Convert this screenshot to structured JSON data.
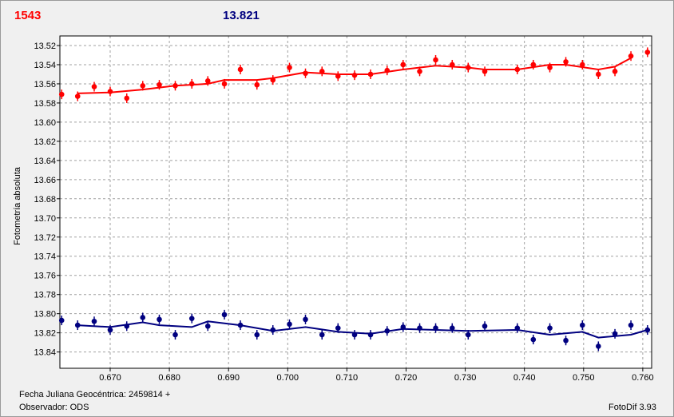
{
  "header": {
    "left_value": "1543",
    "right_value": "13.821",
    "left_color": "#ff0000",
    "right_color": "#000080"
  },
  "footer": {
    "date_label": "Fecha Juliana Geocéntrica: 2459814 +",
    "observer_label": "Observador: ODS",
    "software_label": "FotoDif 3.93"
  },
  "chart_data": {
    "type": "scatter",
    "ylabel": "Fotometría absoluta",
    "xlabel": "",
    "xlim": [
      0.6615,
      0.7615
    ],
    "ylim": [
      13.51,
      13.857
    ],
    "y_inverted": true,
    "grid": true,
    "x_ticks": [
      "0.670",
      "0.680",
      "0.690",
      "0.700",
      "0.710",
      "0.720",
      "0.730",
      "0.740",
      "0.750",
      "0.760"
    ],
    "y_ticks": [
      "13.52",
      "13.54",
      "13.56",
      "13.58",
      "13.60",
      "13.62",
      "13.64",
      "13.66",
      "13.68",
      "13.70",
      "13.72",
      "13.74",
      "13.76",
      "13.78",
      "13.80",
      "13.82",
      "13.84"
    ],
    "series": [
      {
        "color": "#ff0000",
        "points": [
          [
            0.6618,
            13.571
          ],
          [
            0.6645,
            13.573
          ],
          [
            0.6673,
            13.563
          ],
          [
            0.67,
            13.568
          ],
          [
            0.6728,
            13.575
          ],
          [
            0.6755,
            13.562
          ],
          [
            0.6783,
            13.561
          ],
          [
            0.681,
            13.562
          ],
          [
            0.6838,
            13.56
          ],
          [
            0.6865,
            13.557
          ],
          [
            0.6893,
            13.56
          ],
          [
            0.692,
            13.545
          ],
          [
            0.6948,
            13.561
          ],
          [
            0.6975,
            13.556
          ],
          [
            0.7003,
            13.543
          ],
          [
            0.703,
            13.549
          ],
          [
            0.7058,
            13.547
          ],
          [
            0.7085,
            13.552
          ],
          [
            0.7113,
            13.551
          ],
          [
            0.714,
            13.55
          ],
          [
            0.7168,
            13.546
          ],
          [
            0.7195,
            13.54
          ],
          [
            0.7223,
            13.547
          ],
          [
            0.725,
            13.535
          ],
          [
            0.7278,
            13.54
          ],
          [
            0.7305,
            13.543
          ],
          [
            0.7333,
            13.547
          ],
          [
            0.7388,
            13.545
          ],
          [
            0.7415,
            13.54
          ],
          [
            0.7443,
            13.543
          ],
          [
            0.747,
            13.537
          ],
          [
            0.7498,
            13.54
          ],
          [
            0.7525,
            13.55
          ],
          [
            0.7553,
            13.547
          ],
          [
            0.758,
            13.531
          ],
          [
            0.7608,
            13.527
          ]
        ],
        "trend": [
          [
            0.6645,
            13.57
          ],
          [
            0.67,
            13.569
          ],
          [
            0.6755,
            13.566
          ],
          [
            0.681,
            13.562
          ],
          [
            0.6865,
            13.56
          ],
          [
            0.6893,
            13.556
          ],
          [
            0.6948,
            13.556
          ],
          [
            0.6975,
            13.554
          ],
          [
            0.703,
            13.548
          ],
          [
            0.7085,
            13.55
          ],
          [
            0.714,
            13.55
          ],
          [
            0.7195,
            13.545
          ],
          [
            0.725,
            13.541
          ],
          [
            0.7305,
            13.543
          ],
          [
            0.7333,
            13.545
          ],
          [
            0.7388,
            13.545
          ],
          [
            0.7443,
            13.54
          ],
          [
            0.747,
            13.54
          ],
          [
            0.7525,
            13.545
          ],
          [
            0.7553,
            13.542
          ],
          [
            0.758,
            13.533
          ]
        ]
      },
      {
        "color": "#000080",
        "points": [
          [
            0.6618,
            13.807
          ],
          [
            0.6645,
            13.812
          ],
          [
            0.6673,
            13.808
          ],
          [
            0.67,
            13.817
          ],
          [
            0.6728,
            13.813
          ],
          [
            0.6755,
            13.804
          ],
          [
            0.6783,
            13.806
          ],
          [
            0.681,
            13.822
          ],
          [
            0.6838,
            13.805
          ],
          [
            0.6865,
            13.813
          ],
          [
            0.6893,
            13.801
          ],
          [
            0.692,
            13.812
          ],
          [
            0.6948,
            13.822
          ],
          [
            0.6975,
            13.817
          ],
          [
            0.7003,
            13.811
          ],
          [
            0.703,
            13.806
          ],
          [
            0.7058,
            13.822
          ],
          [
            0.7085,
            13.815
          ],
          [
            0.7113,
            13.822
          ],
          [
            0.714,
            13.822
          ],
          [
            0.7168,
            13.818
          ],
          [
            0.7195,
            13.814
          ],
          [
            0.7223,
            13.815
          ],
          [
            0.725,
            13.815
          ],
          [
            0.7278,
            13.815
          ],
          [
            0.7305,
            13.822
          ],
          [
            0.7333,
            13.813
          ],
          [
            0.7388,
            13.815
          ],
          [
            0.7415,
            13.827
          ],
          [
            0.7443,
            13.815
          ],
          [
            0.747,
            13.828
          ],
          [
            0.7498,
            13.812
          ],
          [
            0.7525,
            13.834
          ],
          [
            0.7553,
            13.821
          ],
          [
            0.758,
            13.812
          ],
          [
            0.7608,
            13.817
          ]
        ],
        "trend": [
          [
            0.6645,
            13.812
          ],
          [
            0.67,
            13.814
          ],
          [
            0.6755,
            13.809
          ],
          [
            0.6783,
            13.812
          ],
          [
            0.6838,
            13.814
          ],
          [
            0.6865,
            13.808
          ],
          [
            0.692,
            13.812
          ],
          [
            0.6975,
            13.818
          ],
          [
            0.703,
            13.814
          ],
          [
            0.7085,
            13.819
          ],
          [
            0.714,
            13.821
          ],
          [
            0.7195,
            13.816
          ],
          [
            0.725,
            13.817
          ],
          [
            0.7305,
            13.818
          ],
          [
            0.7388,
            13.817
          ],
          [
            0.7443,
            13.822
          ],
          [
            0.7498,
            13.819
          ],
          [
            0.7525,
            13.825
          ],
          [
            0.758,
            13.822
          ],
          [
            0.7608,
            13.817
          ]
        ]
      }
    ]
  }
}
